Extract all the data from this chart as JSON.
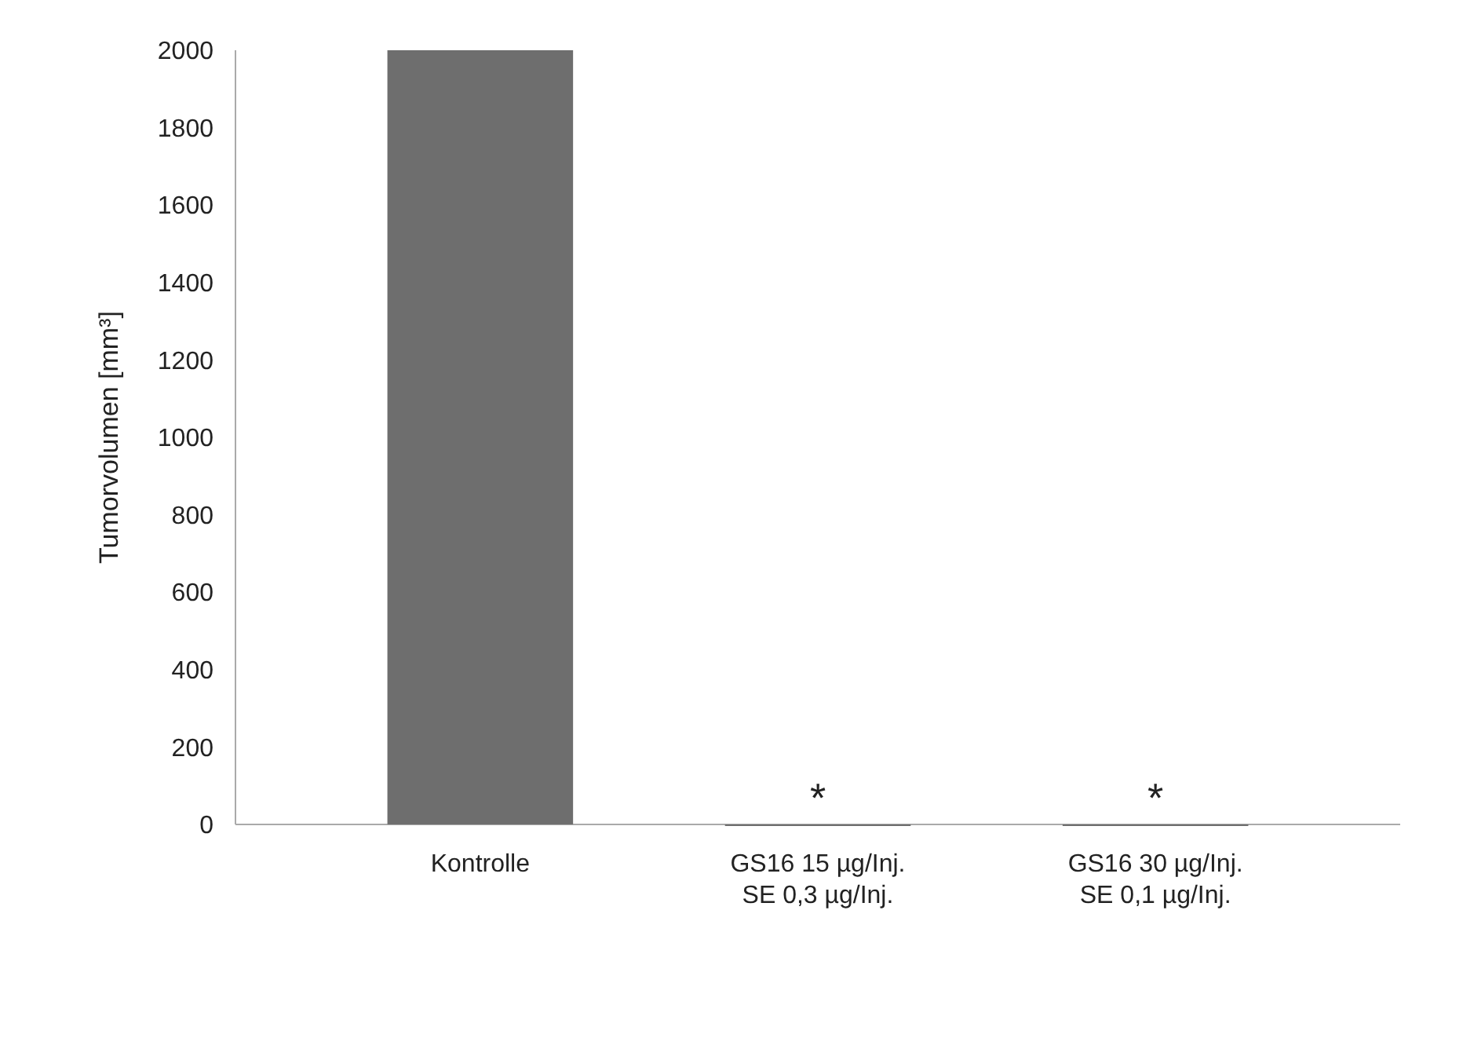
{
  "chart_data": {
    "type": "bar",
    "ylabel": "Tumorvolumen [mm³]",
    "categories": [
      "Kontrolle",
      "GS16 15 µg/Inj.\nSE 0,3 µg/Inj.",
      "GS16 30 µg/Inj.\nSE 0,1 µg/Inj."
    ],
    "values": [
      2000,
      0,
      0
    ],
    "color": "#6e6e6e",
    "ylim": [
      0,
      2000
    ],
    "yticks": [
      0,
      200,
      400,
      600,
      800,
      1000,
      1200,
      1400,
      1600,
      1800,
      2000
    ],
    "grid": false,
    "annotations": [
      {
        "text": "*",
        "x": "GS16 15 µg/Inj.\nSE 0,3 µg/Inj.",
        "y": 0
      },
      {
        "text": "*",
        "x": "GS16 30 µg/Inj.\nSE 0,1 µg/Inj.",
        "y": 0
      }
    ]
  }
}
